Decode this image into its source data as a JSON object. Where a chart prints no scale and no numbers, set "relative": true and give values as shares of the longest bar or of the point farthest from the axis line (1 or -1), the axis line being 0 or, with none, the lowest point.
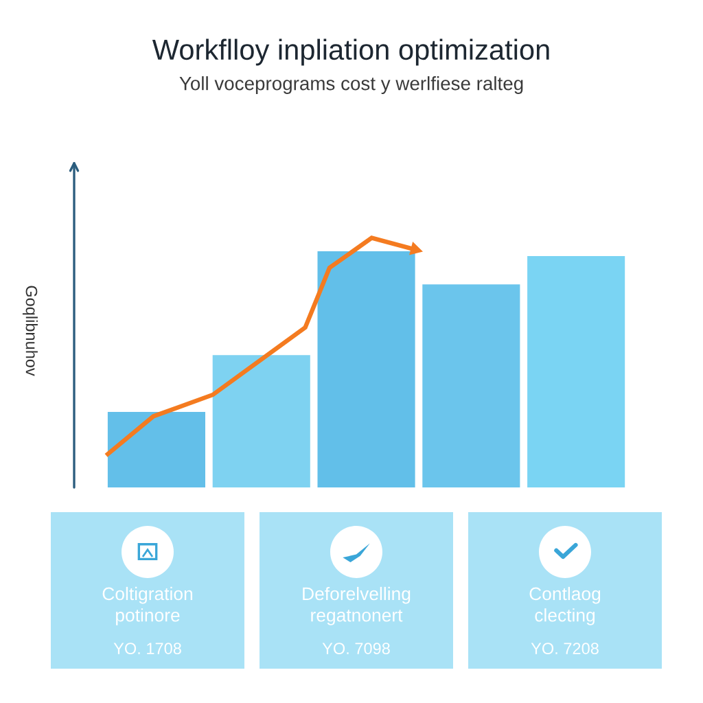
{
  "chart_data": [
    {
      "type": "bar",
      "title": "Workflloy inpliation optimization",
      "subtitle": "Yoll voceprograms cost y werlfiese ralteg",
      "ylabel": "Goqlibnuhov",
      "relative": true,
      "categories": [
        null,
        null,
        null,
        null,
        null
      ],
      "series": [
        {
          "type": "bar",
          "colors": [
            "#63bfe9",
            "#7ed2f1",
            "#62bfe9",
            "#6bc5ec",
            "#7ad4f3"
          ],
          "values": [
            0.32,
            0.56,
            1.0,
            0.86,
            0.98
          ]
        }
      ]
    },
    {
      "type": "other",
      "title": "Coltigration potinore",
      "annotations": [
        "YO. 1708"
      ]
    },
    {
      "type": "other",
      "title": "Deforelvelling regatnonert",
      "annotations": [
        "YO. 7098"
      ]
    },
    {
      "type": "other",
      "title": "Contlaog clecting",
      "annotations": [
        "YO. 7208"
      ]
    }
  ]
}
